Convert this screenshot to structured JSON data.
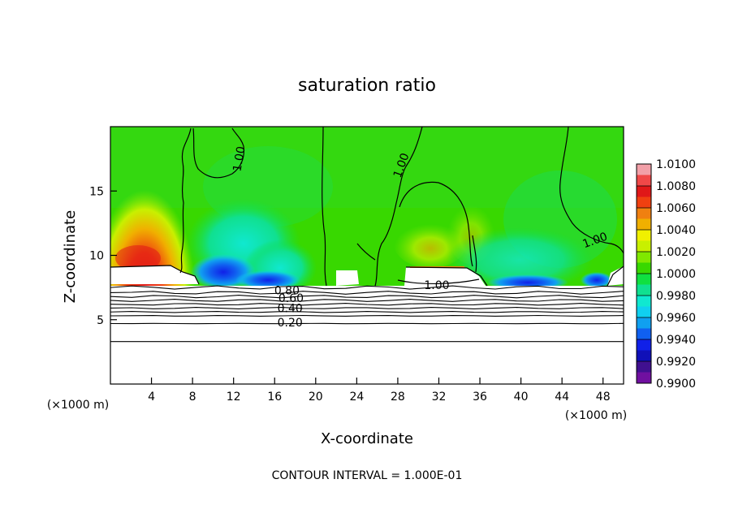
{
  "chart_data": {
    "type": "heatmap",
    "title": "saturation ratio",
    "xlabel": "X-coordinate",
    "ylabel": "Z-coordinate",
    "x_unit_left": "(×1000 m)",
    "x_unit_right": "(×1000 m)",
    "footer": "CONTOUR INTERVAL = 1.000E-01",
    "xlim": [
      0,
      50
    ],
    "ylim": [
      0,
      20
    ],
    "x_ticks": [
      4,
      8,
      12,
      16,
      20,
      24,
      28,
      32,
      36,
      40,
      44,
      48
    ],
    "y_ticks": [
      5,
      10,
      15
    ],
    "colorbar": {
      "levels": [
        "1.0100",
        "1.0080",
        "1.0060",
        "1.0040",
        "1.0020",
        "1.0000",
        "0.9980",
        "0.9960",
        "0.9940",
        "0.9920",
        "0.9900"
      ],
      "bands": [
        {
          "from": 1.009,
          "to": 1.01,
          "color": "#f2a0a8"
        },
        {
          "from": 1.008,
          "to": 1.009,
          "color": "#f04848"
        },
        {
          "from": 1.007,
          "to": 1.008,
          "color": "#e01818"
        },
        {
          "from": 1.006,
          "to": 1.007,
          "color": "#f04010"
        },
        {
          "from": 1.005,
          "to": 1.006,
          "color": "#f08010"
        },
        {
          "from": 1.004,
          "to": 1.005,
          "color": "#f0b000"
        },
        {
          "from": 1.003,
          "to": 1.004,
          "color": "#f0f000"
        },
        {
          "from": 1.002,
          "to": 1.003,
          "color": "#c8f000"
        },
        {
          "from": 1.001,
          "to": 1.002,
          "color": "#80e800"
        },
        {
          "from": 1.0,
          "to": 1.001,
          "color": "#38d800"
        },
        {
          "from": 0.999,
          "to": 1.0,
          "color": "#10e040"
        },
        {
          "from": 0.998,
          "to": 0.999,
          "color": "#10e090"
        },
        {
          "from": 0.997,
          "to": 0.998,
          "color": "#10e8d0"
        },
        {
          "from": 0.996,
          "to": 0.997,
          "color": "#10d0f0"
        },
        {
          "from": 0.995,
          "to": 0.996,
          "color": "#10a0f0"
        },
        {
          "from": 0.994,
          "to": 0.995,
          "color": "#1060f0"
        },
        {
          "from": 0.993,
          "to": 0.994,
          "color": "#1020e8"
        },
        {
          "from": 0.992,
          "to": 0.993,
          "color": "#1010b8"
        },
        {
          "from": 0.991,
          "to": 0.992,
          "color": "#401090"
        },
        {
          "from": 0.99,
          "to": 0.991,
          "color": "#7010a0"
        }
      ]
    },
    "contour_labels": [
      {
        "text": "1.00",
        "x": 12.5,
        "z": 17.5,
        "rotate": -80
      },
      {
        "text": "1.00",
        "x": 28.3,
        "z": 17.0,
        "rotate": -70
      },
      {
        "text": "1.00",
        "x": 47.2,
        "z": 11.2,
        "rotate": -20
      },
      {
        "text": "1.00",
        "x": 31.8,
        "z": 7.7,
        "rotate": 0
      },
      {
        "text": "0.80",
        "x": 17.2,
        "z": 7.3,
        "rotate": 0
      },
      {
        "text": "0.60",
        "x": 17.6,
        "z": 6.7,
        "rotate": 0
      },
      {
        "text": "0.40",
        "x": 17.5,
        "z": 5.9,
        "rotate": 0
      },
      {
        "text": "0.20",
        "x": 17.5,
        "z": 4.8,
        "rotate": 0
      }
    ],
    "stable_layer_contours_z": [
      3.3,
      4.7,
      5.3,
      5.6,
      5.9,
      6.2,
      6.5,
      6.8,
      7.1,
      7.5
    ]
  }
}
